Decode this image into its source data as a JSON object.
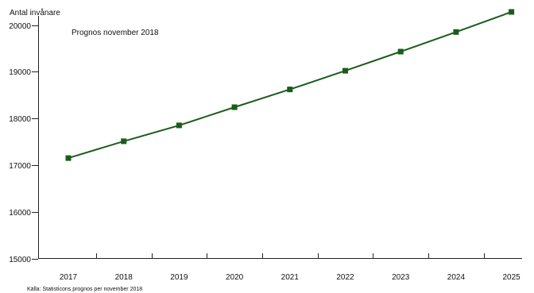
{
  "chart_data": {
    "type": "line",
    "title": "",
    "xlabel": "",
    "ylabel": "Antal invånare",
    "annotation": "Prognos november 2018",
    "source": "Källa: Statisticons prognos per november 2018",
    "x": [
      "2017",
      "2018",
      "2019",
      "2020",
      "2021",
      "2022",
      "2023",
      "2024",
      "2025"
    ],
    "y_ticks": [
      "15000",
      "16000",
      "17000",
      "18000",
      "19000",
      "20000"
    ],
    "ylim": [
      15000,
      20300
    ],
    "grid": false,
    "legend": "none",
    "series": [
      {
        "color": "#1a5c1a",
        "marker": "square",
        "values": [
          17150,
          17510,
          17850,
          18240,
          18620,
          19020,
          19430,
          19850,
          20280
        ]
      }
    ]
  }
}
